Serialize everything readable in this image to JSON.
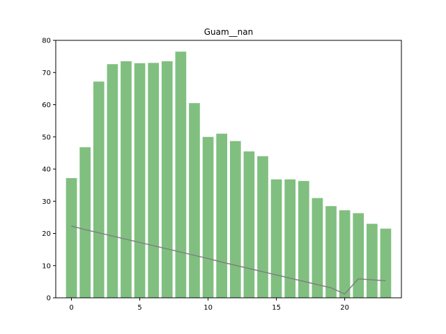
{
  "chart_data": {
    "type": "bar",
    "title": "Guam__nan",
    "xlabel": "",
    "ylabel": "",
    "xlim": [
      -1.15,
      24.15
    ],
    "ylim": [
      0,
      80
    ],
    "x_ticks": [
      0,
      5,
      10,
      15,
      20
    ],
    "y_ticks": [
      0,
      10,
      20,
      30,
      40,
      50,
      60,
      70,
      80
    ],
    "grid": false,
    "legend": "none",
    "x": [
      0,
      1,
      2,
      3,
      4,
      5,
      6,
      7,
      8,
      9,
      10,
      11,
      12,
      13,
      14,
      15,
      16,
      17,
      18,
      19,
      20,
      21,
      22,
      23
    ],
    "series": [
      {
        "type": "bar",
        "color": "#80bf80",
        "values": [
          37.2,
          46.8,
          67.2,
          72.6,
          73.5,
          72.9,
          73.0,
          73.5,
          76.5,
          60.5,
          50.0,
          51.0,
          48.7,
          45.5,
          44.0,
          36.8,
          36.8,
          36.3,
          31.0,
          28.5,
          27.2,
          26.3,
          23.0,
          21.5
        ]
      },
      {
        "type": "line",
        "color": "#808080",
        "values": [
          22.3,
          21.2,
          20.2,
          19.2,
          18.2,
          17.2,
          16.2,
          15.2,
          14.2,
          13.2,
          12.2,
          11.1,
          10.1,
          9.1,
          8.1,
          7.1,
          6.1,
          5.1,
          4.1,
          3.1,
          1.2,
          5.9,
          5.6,
          5.3
        ]
      }
    ]
  }
}
